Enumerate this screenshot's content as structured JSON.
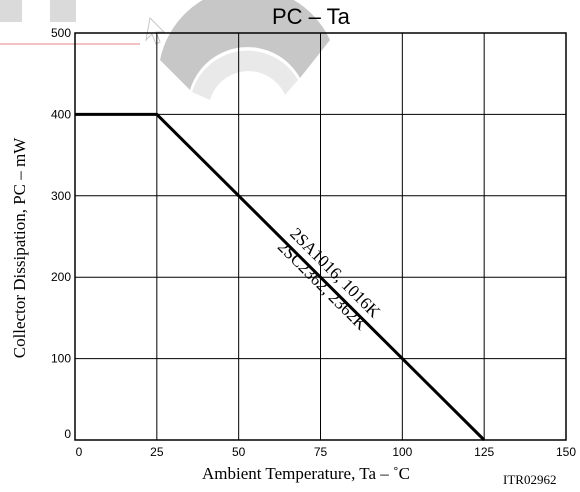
{
  "chart_data": {
    "type": "line",
    "title": "PC  –  Ta",
    "xlabel": "Ambient Temperature, Ta  –  ˚C",
    "ylabel": "Collector Dissipation, PC  –  mW",
    "xlim": [
      0,
      150
    ],
    "ylim": [
      0,
      500
    ],
    "xticks": [
      "0",
      "25",
      "50",
      "75",
      "100",
      "125",
      "150"
    ],
    "yticks": [
      "0",
      "100",
      "200",
      "300",
      "400",
      "500"
    ],
    "grid": true,
    "series": [
      {
        "name": "2SA1016, 1016K\n2SC2362, 2362K",
        "label_line1": "2SA1016, 1016K",
        "label_line2": "2SC2362, 2362K",
        "x": [
          0,
          25,
          125
        ],
        "y": [
          400,
          400,
          0
        ]
      }
    ],
    "figure_code": "ITR02962",
    "watermark_colors": {
      "gray": "#b0b0b0",
      "red": "#cc2222"
    }
  }
}
